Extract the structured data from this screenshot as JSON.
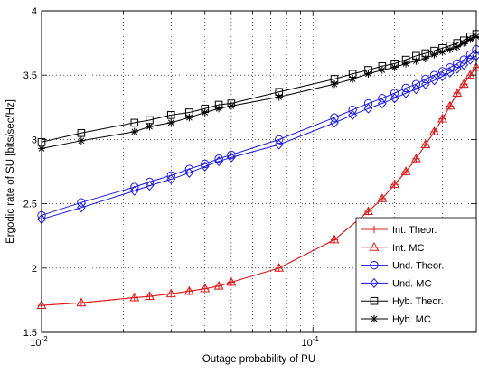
{
  "chart_data": {
    "type": "line",
    "xscale": "log",
    "xlim": [
      0.01,
      0.4
    ],
    "ylim": [
      1.5,
      4
    ],
    "xlabel": "Outage probability of PU",
    "ylabel": "Ergodic rate of SU [bits/sec/Hz]",
    "grid": true,
    "legend_position": "bottom-right",
    "x_ticks": [
      {
        "value": 0.01,
        "base": "10",
        "exp": "-2"
      },
      {
        "value": 0.1,
        "base": "10",
        "exp": "-1"
      }
    ],
    "y_ticks": [
      "1.5",
      "2",
      "2.5",
      "3",
      "3.5",
      "4"
    ],
    "series": [
      {
        "name": "Int. Theor.",
        "color": "#e11b1b",
        "marker": "plus",
        "x": [
          0.01,
          0.014,
          0.022,
          0.025,
          0.03,
          0.035,
          0.04,
          0.045,
          0.05,
          0.075,
          0.12,
          0.16,
          0.18,
          0.2,
          0.22,
          0.24,
          0.26,
          0.28,
          0.3,
          0.32,
          0.34,
          0.36,
          0.38,
          0.4
        ],
        "y": [
          1.71,
          1.73,
          1.77,
          1.78,
          1.8,
          1.82,
          1.84,
          1.86,
          1.89,
          2.0,
          2.22,
          2.44,
          2.54,
          2.65,
          2.75,
          2.85,
          2.96,
          3.06,
          3.16,
          3.26,
          3.36,
          3.43,
          3.5,
          3.56
        ]
      },
      {
        "name": "Int. MC",
        "color": "#e11b1b",
        "marker": "triangle",
        "x": [
          0.01,
          0.014,
          0.022,
          0.025,
          0.03,
          0.035,
          0.04,
          0.045,
          0.05,
          0.075,
          0.12,
          0.16,
          0.18,
          0.2,
          0.22,
          0.24,
          0.26,
          0.28,
          0.3,
          0.32,
          0.34,
          0.36,
          0.38,
          0.4
        ],
        "y": [
          1.71,
          1.73,
          1.77,
          1.78,
          1.8,
          1.82,
          1.84,
          1.86,
          1.89,
          2.0,
          2.22,
          2.44,
          2.54,
          2.65,
          2.75,
          2.85,
          2.96,
          3.06,
          3.16,
          3.26,
          3.36,
          3.43,
          3.5,
          3.56
        ]
      },
      {
        "name": "Und. Theor.",
        "color": "#1a1ae6",
        "marker": "circle",
        "x": [
          0.01,
          0.014,
          0.022,
          0.025,
          0.03,
          0.035,
          0.04,
          0.045,
          0.05,
          0.075,
          0.12,
          0.14,
          0.16,
          0.18,
          0.2,
          0.22,
          0.24,
          0.26,
          0.28,
          0.3,
          0.32,
          0.34,
          0.36,
          0.38,
          0.4
        ],
        "y": [
          2.41,
          2.51,
          2.63,
          2.67,
          2.72,
          2.77,
          2.81,
          2.85,
          2.88,
          3.0,
          3.17,
          3.23,
          3.28,
          3.32,
          3.36,
          3.4,
          3.43,
          3.47,
          3.5,
          3.53,
          3.56,
          3.59,
          3.62,
          3.66,
          3.7
        ]
      },
      {
        "name": "Und. MC",
        "color": "#1a1ae6",
        "marker": "diamond",
        "x": [
          0.01,
          0.014,
          0.022,
          0.025,
          0.03,
          0.035,
          0.04,
          0.045,
          0.05,
          0.075,
          0.12,
          0.14,
          0.16,
          0.18,
          0.2,
          0.22,
          0.24,
          0.26,
          0.28,
          0.3,
          0.32,
          0.34,
          0.36,
          0.38,
          0.4
        ],
        "y": [
          2.38,
          2.47,
          2.6,
          2.64,
          2.69,
          2.74,
          2.79,
          2.83,
          2.86,
          2.96,
          3.13,
          3.19,
          3.24,
          3.28,
          3.32,
          3.36,
          3.39,
          3.43,
          3.46,
          3.49,
          3.52,
          3.55,
          3.58,
          3.62,
          3.65
        ]
      },
      {
        "name": "Hyb. Theor.",
        "color": "#000000",
        "marker": "square",
        "x": [
          0.01,
          0.014,
          0.022,
          0.025,
          0.03,
          0.035,
          0.04,
          0.045,
          0.05,
          0.075,
          0.12,
          0.14,
          0.16,
          0.18,
          0.2,
          0.22,
          0.24,
          0.26,
          0.28,
          0.3,
          0.32,
          0.34,
          0.36,
          0.38,
          0.4
        ],
        "y": [
          2.98,
          3.05,
          3.13,
          3.15,
          3.19,
          3.21,
          3.24,
          3.27,
          3.28,
          3.37,
          3.47,
          3.51,
          3.54,
          3.57,
          3.59,
          3.62,
          3.65,
          3.67,
          3.69,
          3.71,
          3.73,
          3.75,
          3.77,
          3.8,
          3.82
        ]
      },
      {
        "name": "Hyb. MC",
        "color": "#000000",
        "marker": "star",
        "x": [
          0.01,
          0.014,
          0.022,
          0.025,
          0.03,
          0.035,
          0.04,
          0.045,
          0.05,
          0.075,
          0.12,
          0.14,
          0.16,
          0.18,
          0.2,
          0.22,
          0.24,
          0.26,
          0.28,
          0.3,
          0.32,
          0.34,
          0.36,
          0.38,
          0.4
        ],
        "y": [
          2.93,
          2.99,
          3.06,
          3.1,
          3.13,
          3.17,
          3.21,
          3.24,
          3.26,
          3.33,
          3.43,
          3.47,
          3.51,
          3.54,
          3.56,
          3.59,
          3.61,
          3.63,
          3.66,
          3.68,
          3.7,
          3.72,
          3.75,
          3.78,
          3.8
        ]
      }
    ]
  }
}
